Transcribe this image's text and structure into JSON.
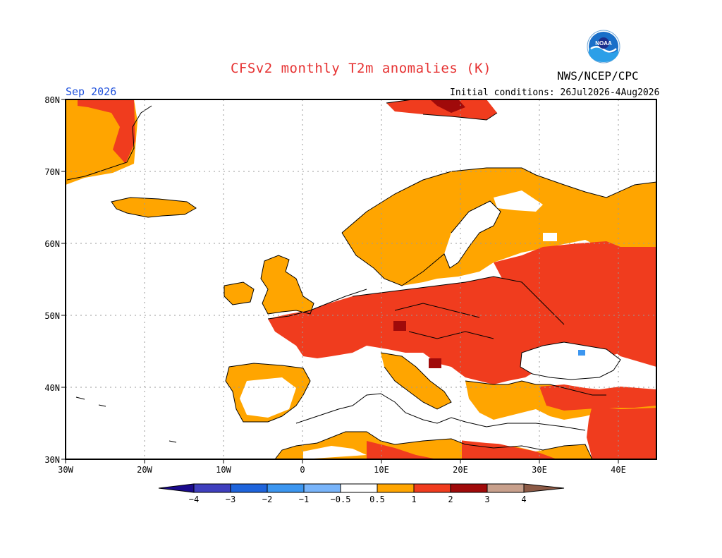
{
  "header": {
    "title": "CFSv2 monthly T2m anomalies (K)",
    "agency": "NWS/NCEP/CPC",
    "logo_text": "NOAA",
    "valid_month": "Sep 2026",
    "initial_conditions": "Initial conditions: 26Jul2026-4Aug2026"
  },
  "map": {
    "lat_labels": [
      "80N",
      "70N",
      "60N",
      "50N",
      "40N",
      "30N"
    ],
    "lon_labels": [
      "30W",
      "20W",
      "10W",
      "0",
      "10E",
      "20E",
      "30E",
      "40E"
    ],
    "lon_range": [
      -30,
      45
    ],
    "lat_range": [
      30,
      80
    ]
  },
  "colorbar": {
    "labels": [
      "−4",
      "−3",
      "−2",
      "−1",
      "−0.5",
      "0.5",
      "1",
      "2",
      "3",
      "4"
    ],
    "colors": {
      "below_-4": "#1a0a8c",
      "-4_-3": "#3f3fbe",
      "-3_-2": "#1e64dc",
      "-2_-1": "#3c96f0",
      "-1_-0.5": "#78b4fa",
      "-0.5_0.5": "#ffffff",
      "0.5_1": "#ffa500",
      "1_2": "#f03c1e",
      "2_3": "#a00a0a",
      "3_4": "#c8a08c",
      "above_4": "#8c5a46"
    }
  },
  "colors": {
    "title": "#e63232",
    "valid_month": "#1e50dc",
    "frame": "#000000",
    "grid": "#9a9a9a"
  }
}
